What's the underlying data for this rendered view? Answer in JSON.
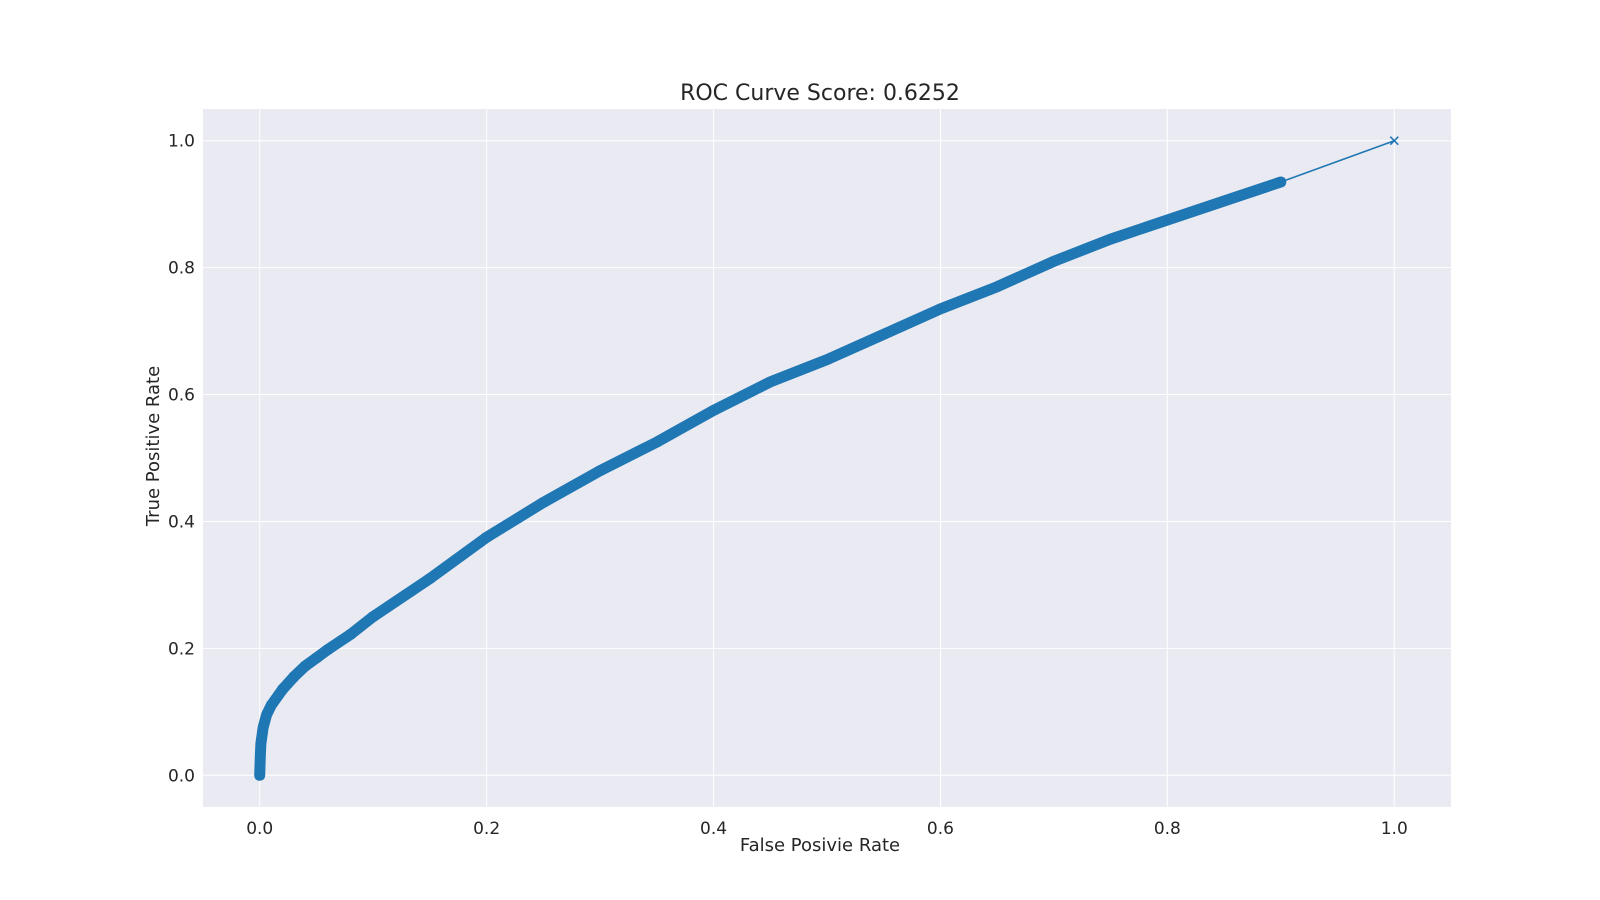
{
  "chart_data": {
    "type": "line",
    "title": "ROC Curve Score: 0.6252",
    "xlabel": "False Posivie Rate",
    "ylabel": "True Positive Rate",
    "xlim": [
      -0.05,
      1.05
    ],
    "ylim": [
      -0.05,
      1.05
    ],
    "grid": true,
    "colors": {
      "plot_background": "#eaeaf2",
      "grid": "#ffffff",
      "series": "#1f77b4",
      "text": "#262626"
    },
    "x_ticks": [
      {
        "value": 0.0,
        "label": "0.0"
      },
      {
        "value": 0.2,
        "label": "0.2"
      },
      {
        "value": 0.4,
        "label": "0.4"
      },
      {
        "value": 0.6,
        "label": "0.6"
      },
      {
        "value": 0.8,
        "label": "0.8"
      },
      {
        "value": 1.0,
        "label": "1.0"
      }
    ],
    "y_ticks": [
      {
        "value": 0.0,
        "label": "0.0"
      },
      {
        "value": 0.2,
        "label": "0.2"
      },
      {
        "value": 0.4,
        "label": "0.4"
      },
      {
        "value": 0.6,
        "label": "0.6"
      },
      {
        "value": 0.8,
        "label": "0.8"
      },
      {
        "value": 1.0,
        "label": "1.0"
      }
    ],
    "series": [
      {
        "marker": "x",
        "points": [
          [
            0.0,
            0.0
          ],
          [
            0.0005,
            0.03
          ],
          [
            0.001,
            0.05
          ],
          [
            0.003,
            0.075
          ],
          [
            0.006,
            0.095
          ],
          [
            0.01,
            0.11
          ],
          [
            0.02,
            0.135
          ],
          [
            0.03,
            0.155
          ],
          [
            0.04,
            0.172
          ],
          [
            0.05,
            0.185
          ],
          [
            0.06,
            0.198
          ],
          [
            0.08,
            0.222
          ],
          [
            0.1,
            0.25
          ],
          [
            0.15,
            0.31
          ],
          [
            0.2,
            0.375
          ],
          [
            0.25,
            0.43
          ],
          [
            0.3,
            0.48
          ],
          [
            0.35,
            0.525
          ],
          [
            0.4,
            0.575
          ],
          [
            0.45,
            0.62
          ],
          [
            0.5,
            0.655
          ],
          [
            0.55,
            0.695
          ],
          [
            0.6,
            0.735
          ],
          [
            0.65,
            0.77
          ],
          [
            0.7,
            0.81
          ],
          [
            0.75,
            0.845
          ],
          [
            0.8,
            0.875
          ],
          [
            0.85,
            0.905
          ],
          [
            0.9,
            0.935
          ]
        ],
        "endpoint": [
          1.0,
          1.0
        ]
      }
    ]
  }
}
